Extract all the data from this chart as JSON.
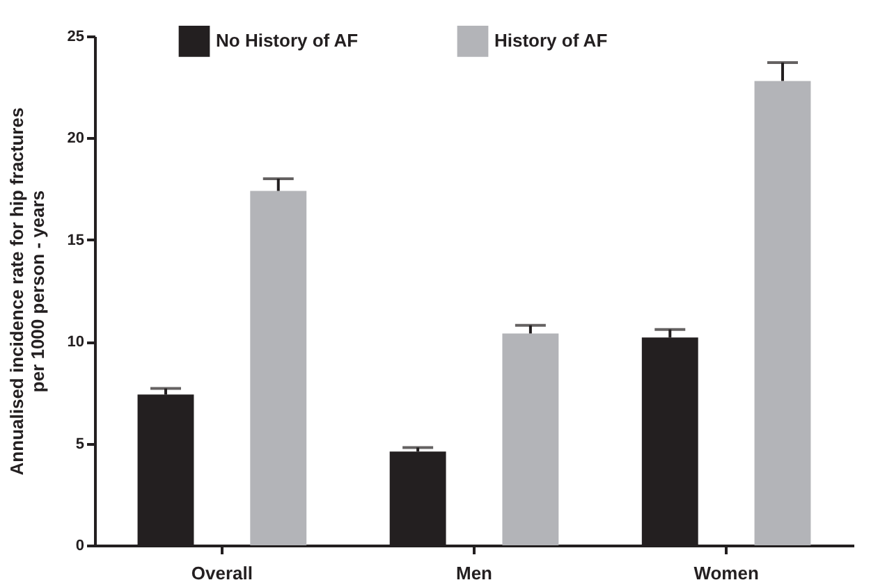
{
  "chart_data": {
    "type": "bar",
    "ylabel": "Annualised incidence rate for hip fractures\nper 1000 person - years",
    "categories": [
      "Overall",
      "Men",
      "Women"
    ],
    "series": [
      {
        "name": "No History of AF",
        "color": "#231f20",
        "values": [
          7.4,
          4.6,
          10.2
        ],
        "errors": [
          0.3,
          0.2,
          0.4
        ]
      },
      {
        "name": "History of AF",
        "color": "#b3b4b8",
        "values": [
          17.4,
          10.4,
          22.8
        ],
        "errors": [
          0.6,
          0.4,
          0.9
        ]
      }
    ],
    "ylim": [
      0,
      25
    ],
    "yticks": [
      0,
      5,
      10,
      15,
      20,
      25
    ],
    "grid": false,
    "legend": "top"
  }
}
